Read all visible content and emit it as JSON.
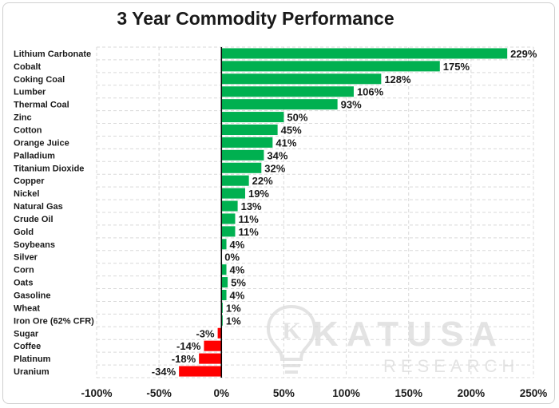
{
  "chart_data": {
    "type": "bar",
    "orientation": "horizontal",
    "title": "3 Year Commodity Performance",
    "categories": [
      "Lithium Carbonate",
      "Cobalt",
      "Coking Coal",
      "Lumber",
      "Thermal Coal",
      "Zinc",
      "Cotton",
      "Orange Juice",
      "Palladium",
      "Titanium Dioxide",
      "Copper",
      "Nickel",
      "Natural Gas",
      "Crude Oil",
      "Gold",
      "Soybeans",
      "Silver",
      "Corn",
      "Oats",
      "Gasoline",
      "Wheat",
      "Iron Ore (62% CFR)",
      "Sugar",
      "Coffee",
      "Platinum",
      "Uranium"
    ],
    "values": [
      229,
      175,
      128,
      106,
      93,
      50,
      45,
      41,
      34,
      32,
      22,
      19,
      13,
      11,
      11,
      4,
      0,
      4,
      5,
      4,
      1,
      1,
      -3,
      -14,
      -18,
      -34
    ],
    "value_labels": [
      "229%",
      "175%",
      "128%",
      "106%",
      "93%",
      "50%",
      "45%",
      "41%",
      "34%",
      "32%",
      "22%",
      "19%",
      "13%",
      "11%",
      "11%",
      "4%",
      "0%",
      "4%",
      "5%",
      "4%",
      "1%",
      "1%",
      "-3%",
      "-14%",
      "-18%",
      "-34%"
    ],
    "xlim": [
      -100,
      250
    ],
    "x_ticks": [
      -100,
      -50,
      0,
      50,
      100,
      150,
      200,
      250
    ],
    "x_tick_labels": [
      "-100%",
      "-50%",
      "0%",
      "50%",
      "100%",
      "150%",
      "200%",
      "250%"
    ],
    "xlabel": "",
    "ylabel": "",
    "grid": true,
    "colors": {
      "positive": "#00b050",
      "negative": "#ff0000",
      "grid": "#d9d9d9",
      "axis": "#000000"
    }
  },
  "watermark": {
    "logo_letter": "K",
    "brand": "KATUSA",
    "sub": "RESEARCH"
  }
}
